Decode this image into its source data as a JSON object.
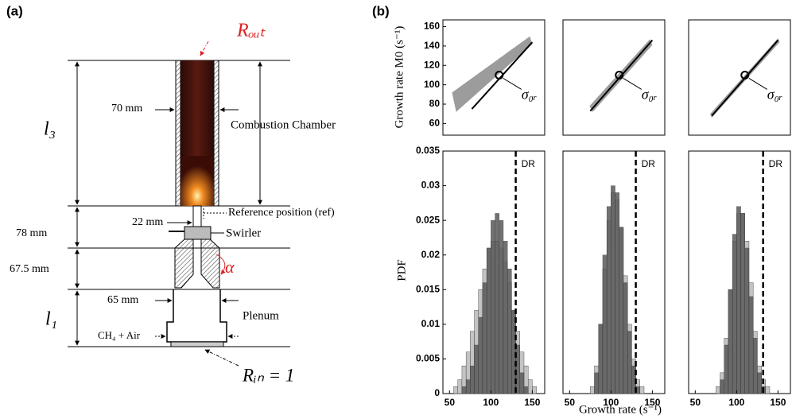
{
  "panel_a": {
    "label": "(a)",
    "labels": {
      "r_out": "Rₒᵤₜ",
      "d_chamber": "70 mm",
      "l3": "l₃",
      "chamber": "Combustion Chamber",
      "d_inj": "22 mm",
      "ref": "Reference position (ref)",
      "h_swirl": "78 mm",
      "swirler": "Swirler",
      "h_cone": "67.5 mm",
      "alpha": "α",
      "d_plenum": "65 mm",
      "plenum": "Plenum",
      "l1": "l₁",
      "inlet": "CH₄ + Air",
      "r_in": "Rᵢₙ = 1"
    }
  },
  "panel_b": {
    "label": "(b)",
    "scatter_ylabel": "Growth rate M0 (s⁻¹)",
    "hist_ylabel": "PDF",
    "xlabel": "Growth rate (s⁻¹)",
    "threshold_label": "DR",
    "point_label": "σ₀ᵣ",
    "xlim": [
      42,
      165
    ],
    "xticks": [
      50,
      100,
      150
    ],
    "scatter_ylim": [
      48,
      167
    ],
    "scatter_yticks": [
      60,
      80,
      100,
      120,
      140,
      160
    ],
    "hist_ylim": [
      0,
      0.035
    ],
    "hist_yticks": [
      0,
      0.005,
      0.01,
      0.015,
      0.02,
      0.025,
      0.03,
      0.035
    ],
    "bins": [
      55,
      60,
      65,
      70,
      75,
      80,
      85,
      90,
      95,
      100,
      105,
      110,
      115,
      120,
      125,
      130,
      135,
      140,
      145,
      150,
      155
    ],
    "panels": [
      {
        "threshold": 130,
        "point": [
          110,
          110
        ],
        "cloud_x": [
          53,
          58,
          150,
          147
        ],
        "cloud_y": [
          92,
          72,
          142,
          150
        ],
        "fit_x": [
          77,
          150
        ],
        "fit_y": [
          75,
          144
        ],
        "series": [
          {
            "color": "#c4c4c4",
            "values": [
              0.001,
              0.002,
              0.004,
              0.006,
              0.009,
              0.012,
              0.015,
              0.018,
              0.021,
              0.022,
              0.022,
              0.021,
              0.019,
              0.016,
              0.012,
              0.009,
              0.006,
              0.004,
              0.002,
              0.001
            ]
          },
          {
            "color": "#5a5a5a",
            "values": [
              0,
              0,
              0.001,
              0.002,
              0.004,
              0.007,
              0.011,
              0.016,
              0.021,
              0.025,
              0.026,
              0.025,
              0.022,
              0.018,
              0.012,
              0.007,
              0.003,
              0.001,
              0,
              0
            ]
          }
        ]
      },
      {
        "threshold": 130,
        "point": [
          110,
          110
        ],
        "cloud_x": [
          74,
          78,
          150,
          147
        ],
        "cloud_y": [
          78,
          72,
          141,
          147
        ],
        "fit_x": [
          75,
          150
        ],
        "fit_y": [
          73,
          146
        ],
        "series": [
          {
            "color": "#c4c4c4",
            "values": [
              0,
              0,
              0,
              0,
              0.001,
              0.004,
              0.01,
              0.018,
              0.025,
              0.029,
              0.028,
              0.024,
              0.017,
              0.01,
              0.005,
              0.002,
              0.001,
              0,
              0,
              0
            ]
          },
          {
            "color": "#5a5a5a",
            "values": [
              0,
              0,
              0,
              0,
              0,
              0.003,
              0.01,
              0.02,
              0.027,
              0.03,
              0.029,
              0.024,
              0.016,
              0.009,
              0.004,
              0.001,
              0,
              0,
              0,
              0
            ]
          }
        ]
      },
      {
        "threshold": 132,
        "point": [
          110,
          110
        ],
        "cloud_x": [
          68,
          70,
          152,
          150
        ],
        "cloud_y": [
          70,
          66,
          144,
          148
        ],
        "fit_x": [
          70,
          150
        ],
        "fit_y": [
          68,
          146
        ],
        "series": [
          {
            "color": "#c4c4c4",
            "values": [
              0,
              0,
              0,
              0,
              0.001,
              0.003,
              0.008,
              0.015,
              0.022,
              0.026,
              0.026,
              0.022,
              0.016,
              0.009,
              0.004,
              0.002,
              0.001,
              0,
              0,
              0
            ]
          },
          {
            "color": "#5a5a5a",
            "values": [
              0,
              0,
              0,
              0,
              0,
              0.002,
              0.007,
              0.015,
              0.023,
              0.027,
              0.026,
              0.021,
              0.014,
              0.008,
              0.003,
              0.001,
              0,
              0,
              0,
              0
            ]
          }
        ]
      }
    ]
  }
}
